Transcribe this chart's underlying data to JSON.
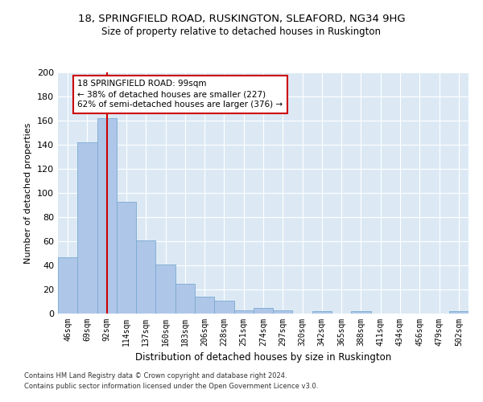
{
  "title1": "18, SPRINGFIELD ROAD, RUSKINGTON, SLEAFORD, NG34 9HG",
  "title2": "Size of property relative to detached houses in Ruskington",
  "xlabel": "Distribution of detached houses by size in Ruskington",
  "ylabel": "Number of detached properties",
  "footnote1": "Contains HM Land Registry data © Crown copyright and database right 2024.",
  "footnote2": "Contains public sector information licensed under the Open Government Licence v3.0.",
  "bin_labels": [
    "46sqm",
    "69sqm",
    "92sqm",
    "114sqm",
    "137sqm",
    "160sqm",
    "183sqm",
    "206sqm",
    "228sqm",
    "251sqm",
    "274sqm",
    "297sqm",
    "320sqm",
    "342sqm",
    "365sqm",
    "388sqm",
    "411sqm",
    "434sqm",
    "456sqm",
    "479sqm",
    "502sqm"
  ],
  "bar_values": [
    47,
    142,
    162,
    93,
    61,
    41,
    25,
    14,
    11,
    3,
    5,
    3,
    0,
    2,
    0,
    2,
    0,
    0,
    0,
    0,
    2
  ],
  "bar_color": "#aec6e8",
  "bar_edge_color": "#7aaad0",
  "vline_x": 2.0,
  "vline_color": "#cc0000",
  "annotation_text": "18 SPRINGFIELD ROAD: 99sqm\n← 38% of detached houses are smaller (227)\n62% of semi-detached houses are larger (376) →",
  "annotation_box_color": "#ffffff",
  "annotation_box_edge": "#cc0000",
  "ylim": [
    0,
    200
  ],
  "yticks": [
    0,
    20,
    40,
    60,
    80,
    100,
    120,
    140,
    160,
    180,
    200
  ],
  "background_color": "#dce9f5",
  "grid_color": "#ffffff",
  "fig_background": "#ffffff"
}
